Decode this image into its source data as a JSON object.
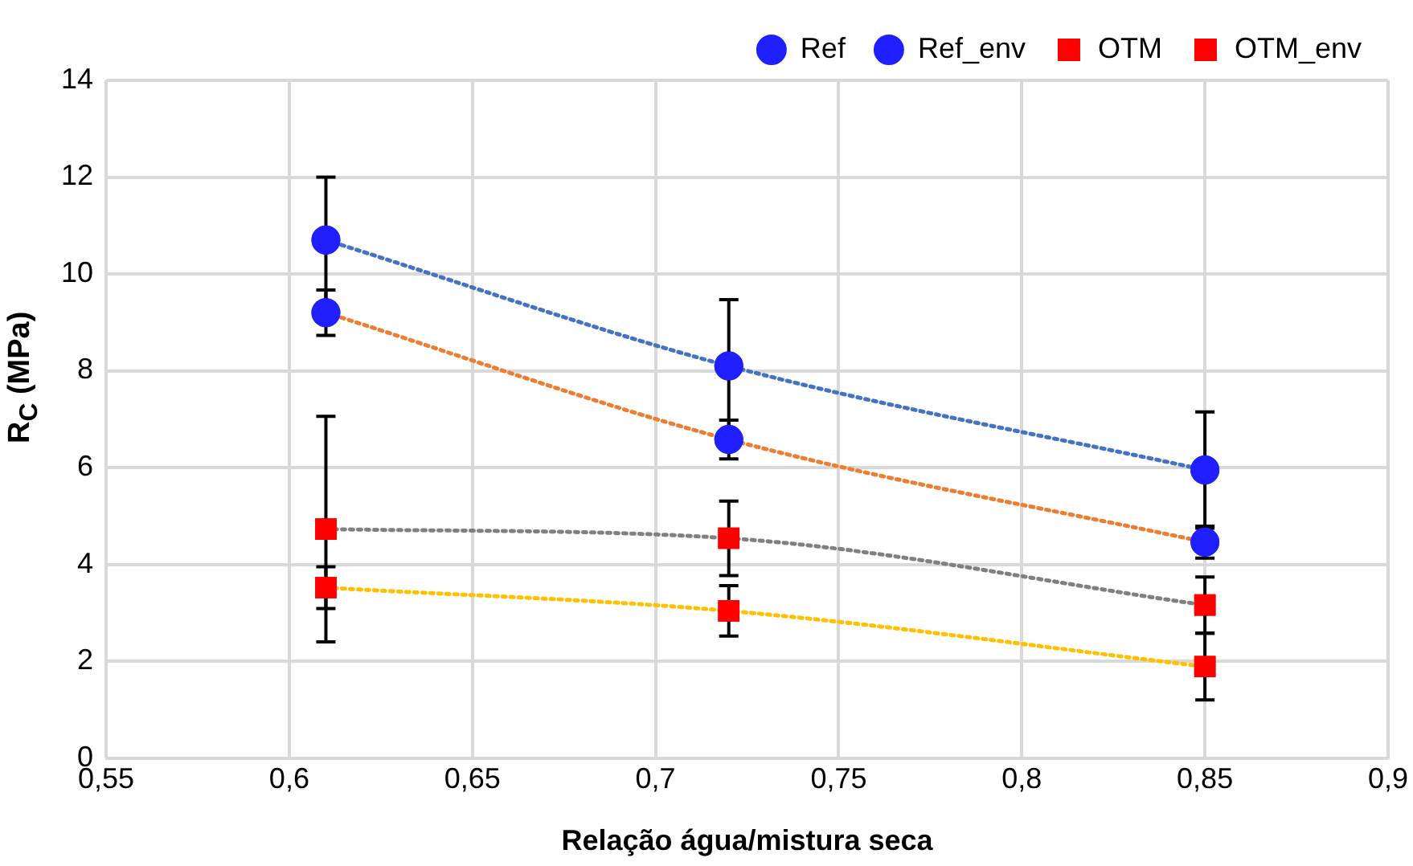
{
  "chart_data": {
    "type": "line",
    "xlabel": "Relação água/mistura seca",
    "ylabel": "R$_{C}$ (MPa)",
    "xlim": [
      0.55,
      0.9
    ],
    "xticks": [
      {
        "value": 0.55,
        "label": "0,55"
      },
      {
        "value": 0.6,
        "label": "0,6"
      },
      {
        "value": 0.65,
        "label": "0,65"
      },
      {
        "value": 0.7,
        "label": "0,7"
      },
      {
        "value": 0.75,
        "label": "0,75"
      },
      {
        "value": 0.8,
        "label": "0,8"
      },
      {
        "value": 0.85,
        "label": "0,85"
      },
      {
        "value": 0.9,
        "label": "0,9"
      }
    ],
    "ylim": [
      0,
      14
    ],
    "yticks": [
      0,
      2,
      4,
      6,
      8,
      10,
      12,
      14
    ],
    "grid": true,
    "legend": "top right",
    "line_style": "dotted",
    "x": [
      0.61,
      0.72,
      0.85
    ],
    "series": [
      {
        "name": "Ref",
        "color": "#4472c4",
        "colors": [
          "#1f1fff",
          "#1f1fff",
          "#1f1fff"
        ],
        "marker": "circle",
        "values": [
          10.7,
          8.1,
          5.95
        ],
        "errors": [
          1.3,
          1.37,
          1.2
        ]
      },
      {
        "name": "Ref_env",
        "color": "#ed7d31",
        "colors": [
          "#1f1fff",
          "#1f1fff",
          "#1f1fff"
        ],
        "marker": "circle",
        "values": [
          9.2,
          6.58,
          4.46
        ],
        "errors": [
          0.47,
          0.4,
          0.33
        ]
      },
      {
        "name": "OTM",
        "color": "#808080",
        "colors": [
          "#ff0000",
          "#ff0000",
          "#ff0000"
        ],
        "marker": "square",
        "values": [
          4.73,
          4.54,
          3.16
        ],
        "errors": [
          2.33,
          0.77,
          0.58
        ]
      },
      {
        "name": "OTM_env",
        "color": "#ffc000",
        "colors": [
          "#ff0000",
          "#ff0000",
          "#ff0000"
        ],
        "marker": "square",
        "values": [
          3.52,
          3.04,
          1.89
        ],
        "errors": [
          0.43,
          0.52,
          0.69
        ]
      }
    ]
  }
}
